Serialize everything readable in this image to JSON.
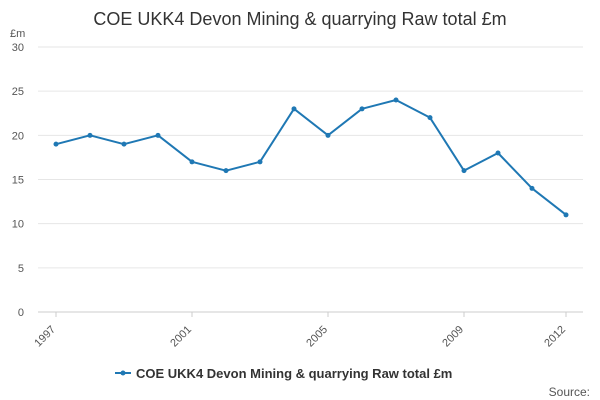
{
  "page": {
    "title": "COE UKK4 Devon Mining & quarrying Raw total £m",
    "unit": "£m",
    "source_label": "Source:"
  },
  "chart_data": {
    "type": "line",
    "title": "COE UKK4 Devon Mining & quarrying Raw total £m",
    "xlabel": "",
    "ylabel": "£m",
    "ylim": [
      0,
      30
    ],
    "yticks": [
      0,
      5,
      10,
      15,
      20,
      25,
      30
    ],
    "xticks": [
      1997,
      2001,
      2005,
      2009,
      2012
    ],
    "grid": true,
    "legend_position": "bottom-center",
    "colors": {
      "series": "#1f78b4",
      "grid": "#e6e6e6",
      "axis": "#cccccc"
    },
    "series": [
      {
        "name": "COE UKK4 Devon Mining & quarrying Raw total £m",
        "x": [
          1997,
          1998,
          1999,
          2000,
          2001,
          2002,
          2003,
          2004,
          2005,
          2006,
          2007,
          2008,
          2009,
          2010,
          2011,
          2012
        ],
        "values": [
          19,
          20,
          19,
          20,
          17,
          16,
          17,
          23,
          20,
          23,
          24,
          22,
          16,
          18,
          14,
          11
        ]
      }
    ]
  }
}
